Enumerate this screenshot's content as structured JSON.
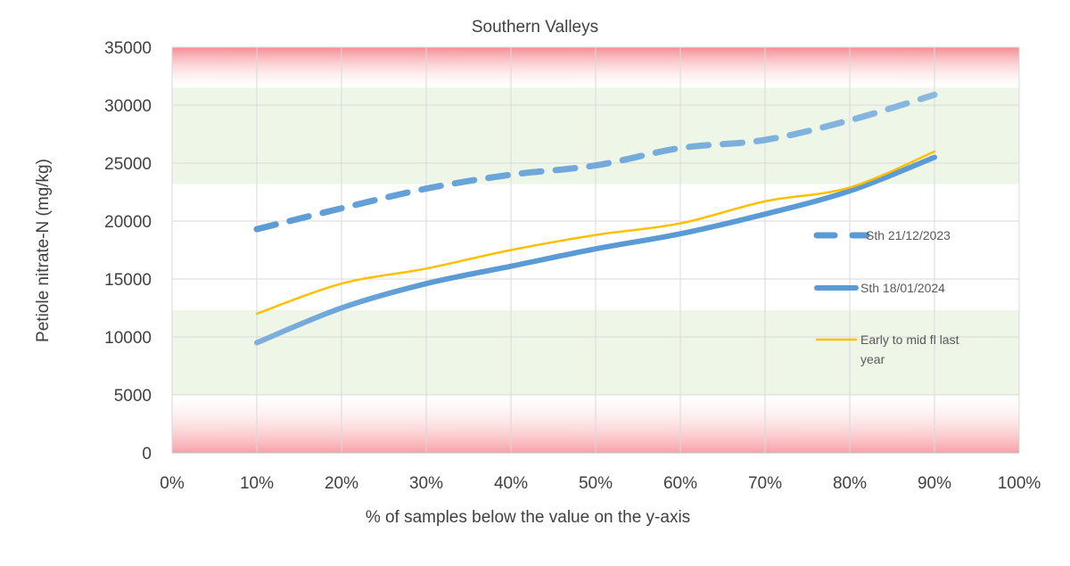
{
  "chart_data": {
    "type": "line",
    "title": "Southern Valleys",
    "xlabel": "% of samples below the value on the y-axis",
    "ylabel": "Petiole nitrate-N (mg/kg)",
    "x_ticks": [
      "0%",
      "10%",
      "20%",
      "30%",
      "40%",
      "50%",
      "60%",
      "70%",
      "80%",
      "90%",
      "100%"
    ],
    "y_ticks": [
      "0",
      "5000",
      "10000",
      "15000",
      "20000",
      "25000",
      "30000",
      "35000"
    ],
    "xlim": [
      0,
      100
    ],
    "ylim": [
      0,
      35000
    ],
    "grid": true,
    "legend_position": "right",
    "bands": [
      {
        "from": 0,
        "to": 5000,
        "color": "#f7a1a6",
        "style": "red-fade-down"
      },
      {
        "from": 5000,
        "to": 12300,
        "color": "#eef6e8",
        "style": "green"
      },
      {
        "from": 23200,
        "to": 31500,
        "color": "#eef6e8",
        "style": "green"
      },
      {
        "from": 31500,
        "to": 35000,
        "color": "#f7a1a6",
        "style": "red-fade-up"
      }
    ],
    "series": [
      {
        "name": "Sth 21/12/2023",
        "style": "dashed",
        "color": "#5b9bd5",
        "x": [
          10,
          20,
          30,
          40,
          50,
          60,
          70,
          80,
          90
        ],
        "y": [
          19300,
          21100,
          22800,
          24000,
          24800,
          26300,
          27000,
          28700,
          30900
        ]
      },
      {
        "name": "Sth 18/01/2024",
        "style": "solid-thick",
        "color": "#5b9bd5",
        "x": [
          10,
          20,
          30,
          40,
          50,
          60,
          70,
          80,
          90
        ],
        "y": [
          9500,
          12500,
          14600,
          16100,
          17600,
          18900,
          20600,
          22600,
          25500
        ]
      },
      {
        "name": "Early to mid fl last year",
        "style": "solid-thin",
        "color": "#ffc000",
        "x": [
          10,
          20,
          30,
          40,
          50,
          60,
          70,
          80,
          90
        ],
        "y": [
          12000,
          14600,
          15900,
          17500,
          18800,
          19800,
          21700,
          22900,
          26000
        ]
      }
    ]
  }
}
